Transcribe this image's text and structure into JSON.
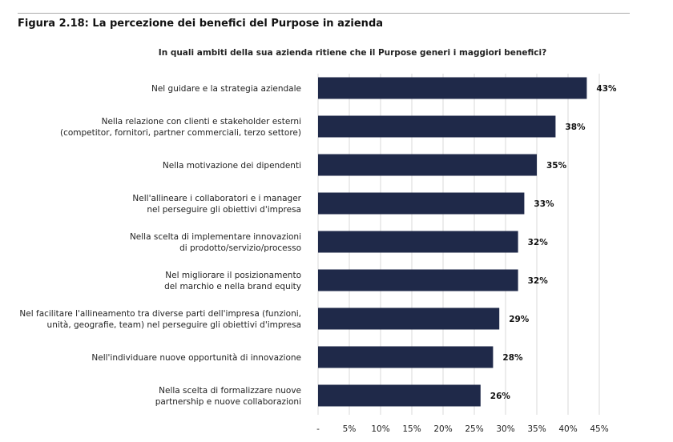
{
  "title": "Figura 2.18: La percezione dei benefici del Purpose in azienda",
  "chart_data": {
    "type": "bar",
    "orientation": "horizontal",
    "title": "In quali ambiti della sua azienda ritiene che il Purpose generi i maggiori benefici?",
    "categories": [
      [
        "Nel guidare e la strategia aziendale"
      ],
      [
        "Nella relazione con clienti e stakeholder esterni",
        "(competitor, fornitori, partner commerciali, terzo settore)"
      ],
      [
        "Nella motivazione dei dipendenti"
      ],
      [
        "Nell'allineare i collaboratori e i manager",
        "nel perseguire gli obiettivi d'impresa"
      ],
      [
        "Nella scelta di implementare innovazioni",
        "di prodotto/servizio/processo"
      ],
      [
        "Nel migliorare il posizionamento",
        "del marchio e nella brand equity"
      ],
      [
        "Nel facilitare l'allineamento tra diverse parti dell'impresa (funzioni,",
        "unità, geografie, team) nel perseguire gli obiettivi d'impresa"
      ],
      [
        "Nell'individuare nuove opportunità di innovazione"
      ],
      [
        "Nella scelta di formalizzare nuove",
        "partnership e nuove collaborazioni"
      ]
    ],
    "values": [
      43,
      38,
      35,
      33,
      32,
      32,
      29,
      28,
      26
    ],
    "data_labels": [
      "43%",
      "38%",
      "35%",
      "33%",
      "32%",
      "32%",
      "29%",
      "28%",
      "26%"
    ],
    "xlim": [
      0,
      45
    ],
    "tick_labels": [
      "-",
      "5%",
      "10%",
      "15%",
      "20%",
      "25%",
      "30%",
      "35%",
      "40%",
      "45%"
    ],
    "ticks": [
      0,
      5,
      10,
      15,
      20,
      25,
      30,
      35,
      40,
      45
    ],
    "grid": true,
    "bar_color": "#1f2949",
    "grid_color": "#d9d9d9"
  }
}
